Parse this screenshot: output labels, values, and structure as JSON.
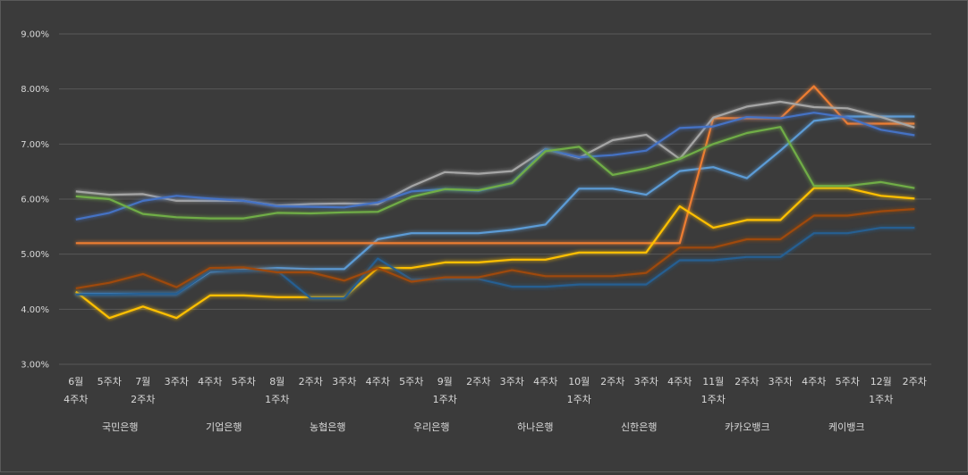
{
  "chart_data": {
    "type": "line",
    "title": "",
    "xlabel": "",
    "ylabel": "",
    "ylim": [
      3.0,
      9.0
    ],
    "y_ticks": [
      "3.00%",
      "4.00%",
      "5.00%",
      "6.00%",
      "7.00%",
      "8.00%",
      "9.00%"
    ],
    "grid": "horizontal",
    "legend_position": "bottom",
    "categories": [
      [
        "6월",
        "4주차"
      ],
      [
        "5주차"
      ],
      [
        "7월",
        "2주차"
      ],
      [
        "3주차"
      ],
      [
        "4주차"
      ],
      [
        "5주차"
      ],
      [
        "8월",
        "1주차"
      ],
      [
        "2주차"
      ],
      [
        "3주차"
      ],
      [
        "4주차"
      ],
      [
        "5주차"
      ],
      [
        "9월",
        "1주차"
      ],
      [
        "2주차"
      ],
      [
        "3주차"
      ],
      [
        "4주차"
      ],
      [
        "10월",
        "1주차"
      ],
      [
        "2주차"
      ],
      [
        "3주차"
      ],
      [
        "4주차"
      ],
      [
        "11월",
        "1주차"
      ],
      [
        "2주차"
      ],
      [
        "3주차"
      ],
      [
        "4주차"
      ],
      [
        "5주차"
      ],
      [
        "12월",
        "1주차"
      ],
      [
        "2주차"
      ]
    ],
    "series": [
      {
        "name": "국민은행",
        "color": "#5b9bd5",
        "values": [
          4.28,
          4.28,
          4.28,
          4.28,
          4.68,
          4.72,
          4.75,
          4.73,
          4.73,
          5.27,
          5.38,
          5.38,
          5.38,
          5.44,
          5.54,
          6.19,
          6.19,
          6.08,
          6.51,
          6.58,
          6.38,
          6.88,
          7.42,
          7.5,
          7.5,
          7.5
        ]
      },
      {
        "name": "기업은행",
        "color": "#ed7d31",
        "values": [
          5.2,
          5.2,
          5.2,
          5.2,
          5.2,
          5.2,
          5.2,
          5.2,
          5.2,
          5.2,
          5.2,
          5.2,
          5.2,
          5.2,
          5.2,
          5.2,
          5.2,
          5.2,
          5.2,
          7.47,
          7.47,
          7.47,
          8.05,
          7.37,
          7.37,
          7.37
        ]
      },
      {
        "name": "농협은행",
        "color": "#a5a5a5",
        "values": [
          6.14,
          6.08,
          6.09,
          5.97,
          5.97,
          5.97,
          5.88,
          5.91,
          5.92,
          5.91,
          6.23,
          6.49,
          6.46,
          6.51,
          6.91,
          6.75,
          7.07,
          7.17,
          6.73,
          7.48,
          7.68,
          7.77,
          7.67,
          7.65,
          7.49,
          7.3
        ]
      },
      {
        "name": "우리은행",
        "color": "#ffc000",
        "values": [
          4.32,
          3.84,
          4.05,
          3.84,
          4.25,
          4.25,
          4.22,
          4.22,
          4.22,
          4.75,
          4.75,
          4.85,
          4.85,
          4.9,
          4.9,
          5.03,
          5.03,
          5.03,
          5.87,
          5.48,
          5.62,
          5.62,
          6.2,
          6.2,
          6.06,
          6.01
        ]
      },
      {
        "name": "하나은행",
        "color": "#4472c4",
        "values": [
          5.63,
          5.75,
          5.97,
          6.06,
          6.01,
          5.97,
          5.87,
          5.86,
          5.85,
          5.94,
          6.14,
          6.18,
          6.15,
          6.29,
          6.91,
          6.76,
          6.8,
          6.88,
          7.29,
          7.32,
          7.49,
          7.47,
          7.57,
          7.48,
          7.26,
          7.16
        ]
      },
      {
        "name": "신한은행",
        "color": "#70ad47",
        "values": [
          6.05,
          6.0,
          5.73,
          5.67,
          5.65,
          5.65,
          5.75,
          5.74,
          5.76,
          5.77,
          6.04,
          6.18,
          6.16,
          6.29,
          6.87,
          6.95,
          6.44,
          6.56,
          6.73,
          7.0,
          7.2,
          7.31,
          6.24,
          6.24,
          6.31,
          6.2
        ]
      },
      {
        "name": "카카오뱅크",
        "color": "#255e91",
        "values": [
          4.27,
          4.27,
          4.28,
          4.28,
          4.7,
          4.7,
          4.7,
          4.2,
          4.2,
          4.92,
          4.54,
          4.55,
          4.55,
          4.41,
          4.41,
          4.45,
          4.45,
          4.45,
          4.89,
          4.89,
          4.95,
          4.95,
          5.38,
          5.38,
          5.48,
          5.48
        ]
      },
      {
        "name": "케이뱅크",
        "color": "#9e480e",
        "values": [
          4.38,
          4.48,
          4.64,
          4.4,
          4.75,
          4.76,
          4.67,
          4.67,
          4.52,
          4.75,
          4.5,
          4.58,
          4.58,
          4.71,
          4.6,
          4.6,
          4.6,
          4.66,
          5.12,
          5.12,
          5.27,
          5.27,
          5.7,
          5.7,
          5.78,
          5.82
        ]
      }
    ]
  }
}
